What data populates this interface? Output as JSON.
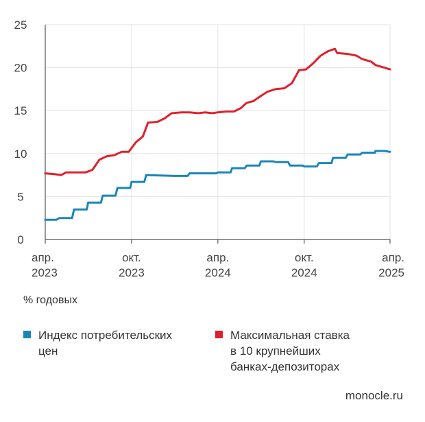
{
  "chart_data": {
    "type": "line",
    "unit_label": "% годовых",
    "y_ticks": [
      "0",
      "5",
      "10",
      "15",
      "20",
      "25"
    ],
    "ylim": [
      0,
      25
    ],
    "x_ticks": [
      {
        "month": "апр.",
        "year": "2023",
        "date": "2023-04"
      },
      {
        "month": "окт.",
        "year": "2023",
        "date": "2023-10"
      },
      {
        "month": "апр.",
        "year": "2024",
        "date": "2024-04"
      },
      {
        "month": "окт.",
        "year": "2024",
        "date": "2024-10"
      },
      {
        "month": "апр.",
        "year": "2025",
        "date": "2025-04"
      }
    ],
    "xlim": [
      "2023-04",
      "2025-04"
    ],
    "grid": true,
    "legend_placement": "bottom",
    "series": [
      {
        "name": "Индекс потребительских\nцен",
        "color": "#1a86b8",
        "points": [
          [
            "2023-04-01",
            2.3
          ],
          [
            "2023-04-25",
            2.3
          ],
          [
            "2023-05-01",
            2.5
          ],
          [
            "2023-05-28",
            2.5
          ],
          [
            "2023-06-01",
            3.5
          ],
          [
            "2023-06-28",
            3.5
          ],
          [
            "2023-07-01",
            4.3
          ],
          [
            "2023-07-28",
            4.3
          ],
          [
            "2023-08-01",
            5.1
          ],
          [
            "2023-08-28",
            5.1
          ],
          [
            "2023-09-01",
            6.0
          ],
          [
            "2023-09-28",
            6.0
          ],
          [
            "2023-10-01",
            6.7
          ],
          [
            "2023-10-28",
            6.7
          ],
          [
            "2023-11-01",
            7.5
          ],
          [
            "2023-12-31",
            7.4
          ],
          [
            "2024-01-01",
            7.4
          ],
          [
            "2024-01-28",
            7.4
          ],
          [
            "2024-02-01",
            7.7
          ],
          [
            "2024-03-28",
            7.7
          ],
          [
            "2024-04-01",
            7.8
          ],
          [
            "2024-04-28",
            7.8
          ],
          [
            "2024-05-01",
            8.3
          ],
          [
            "2024-05-28",
            8.3
          ],
          [
            "2024-06-01",
            8.6
          ],
          [
            "2024-06-28",
            8.6
          ],
          [
            "2024-07-01",
            9.1
          ],
          [
            "2024-07-28",
            9.1
          ],
          [
            "2024-08-01",
            9.0
          ],
          [
            "2024-08-28",
            9.0
          ],
          [
            "2024-09-01",
            8.6
          ],
          [
            "2024-09-28",
            8.6
          ],
          [
            "2024-10-01",
            8.5
          ],
          [
            "2024-10-28",
            8.5
          ],
          [
            "2024-11-01",
            8.9
          ],
          [
            "2024-11-28",
            8.9
          ],
          [
            "2024-12-01",
            9.5
          ],
          [
            "2024-12-28",
            9.5
          ],
          [
            "2025-01-01",
            9.9
          ],
          [
            "2025-01-28",
            9.9
          ],
          [
            "2025-02-01",
            10.1
          ],
          [
            "2025-02-28",
            10.1
          ],
          [
            "2025-03-01",
            10.3
          ],
          [
            "2025-03-20",
            10.3
          ],
          [
            "2025-04-01",
            10.2
          ]
        ]
      },
      {
        "name": "Максимальная ставка\nв 10 крупнейших\nбанках-депозиторах",
        "color": "#e0202d",
        "points": [
          [
            "2023-04-01",
            7.7
          ],
          [
            "2023-04-20",
            7.6
          ],
          [
            "2023-05-05",
            7.5
          ],
          [
            "2023-05-15",
            7.8
          ],
          [
            "2023-06-01",
            7.8
          ],
          [
            "2023-06-25",
            7.8
          ],
          [
            "2023-07-10",
            8.1
          ],
          [
            "2023-07-25",
            9.3
          ],
          [
            "2023-08-10",
            9.7
          ],
          [
            "2023-08-25",
            9.8
          ],
          [
            "2023-09-10",
            10.2
          ],
          [
            "2023-09-25",
            10.2
          ],
          [
            "2023-10-10",
            11.3
          ],
          [
            "2023-10-25",
            12.0
          ],
          [
            "2023-11-05",
            13.6
          ],
          [
            "2023-11-25",
            13.7
          ],
          [
            "2023-12-10",
            14.1
          ],
          [
            "2023-12-25",
            14.7
          ],
          [
            "2024-01-15",
            14.8
          ],
          [
            "2024-02-01",
            14.8
          ],
          [
            "2024-02-20",
            14.7
          ],
          [
            "2024-03-05",
            14.8
          ],
          [
            "2024-03-20",
            14.7
          ],
          [
            "2024-04-01",
            14.8
          ],
          [
            "2024-04-20",
            14.9
          ],
          [
            "2024-05-05",
            14.9
          ],
          [
            "2024-05-20",
            15.3
          ],
          [
            "2024-06-01",
            15.9
          ],
          [
            "2024-06-15",
            16.1
          ],
          [
            "2024-07-01",
            16.7
          ],
          [
            "2024-07-15",
            17.2
          ],
          [
            "2024-08-01",
            17.5
          ],
          [
            "2024-08-20",
            17.6
          ],
          [
            "2024-09-05",
            18.2
          ],
          [
            "2024-09-20",
            19.7
          ],
          [
            "2024-10-05",
            19.8
          ],
          [
            "2024-10-20",
            20.5
          ],
          [
            "2024-11-05",
            21.4
          ],
          [
            "2024-11-20",
            21.9
          ],
          [
            "2024-12-05",
            22.2
          ],
          [
            "2024-12-10",
            21.7
          ],
          [
            "2025-01-01",
            21.6
          ],
          [
            "2025-01-20",
            21.4
          ],
          [
            "2025-02-01",
            21.0
          ],
          [
            "2025-02-20",
            20.7
          ],
          [
            "2025-03-01",
            20.3
          ],
          [
            "2025-03-20",
            20.0
          ],
          [
            "2025-04-01",
            19.8
          ]
        ]
      }
    ]
  },
  "source": "monocle.ru"
}
